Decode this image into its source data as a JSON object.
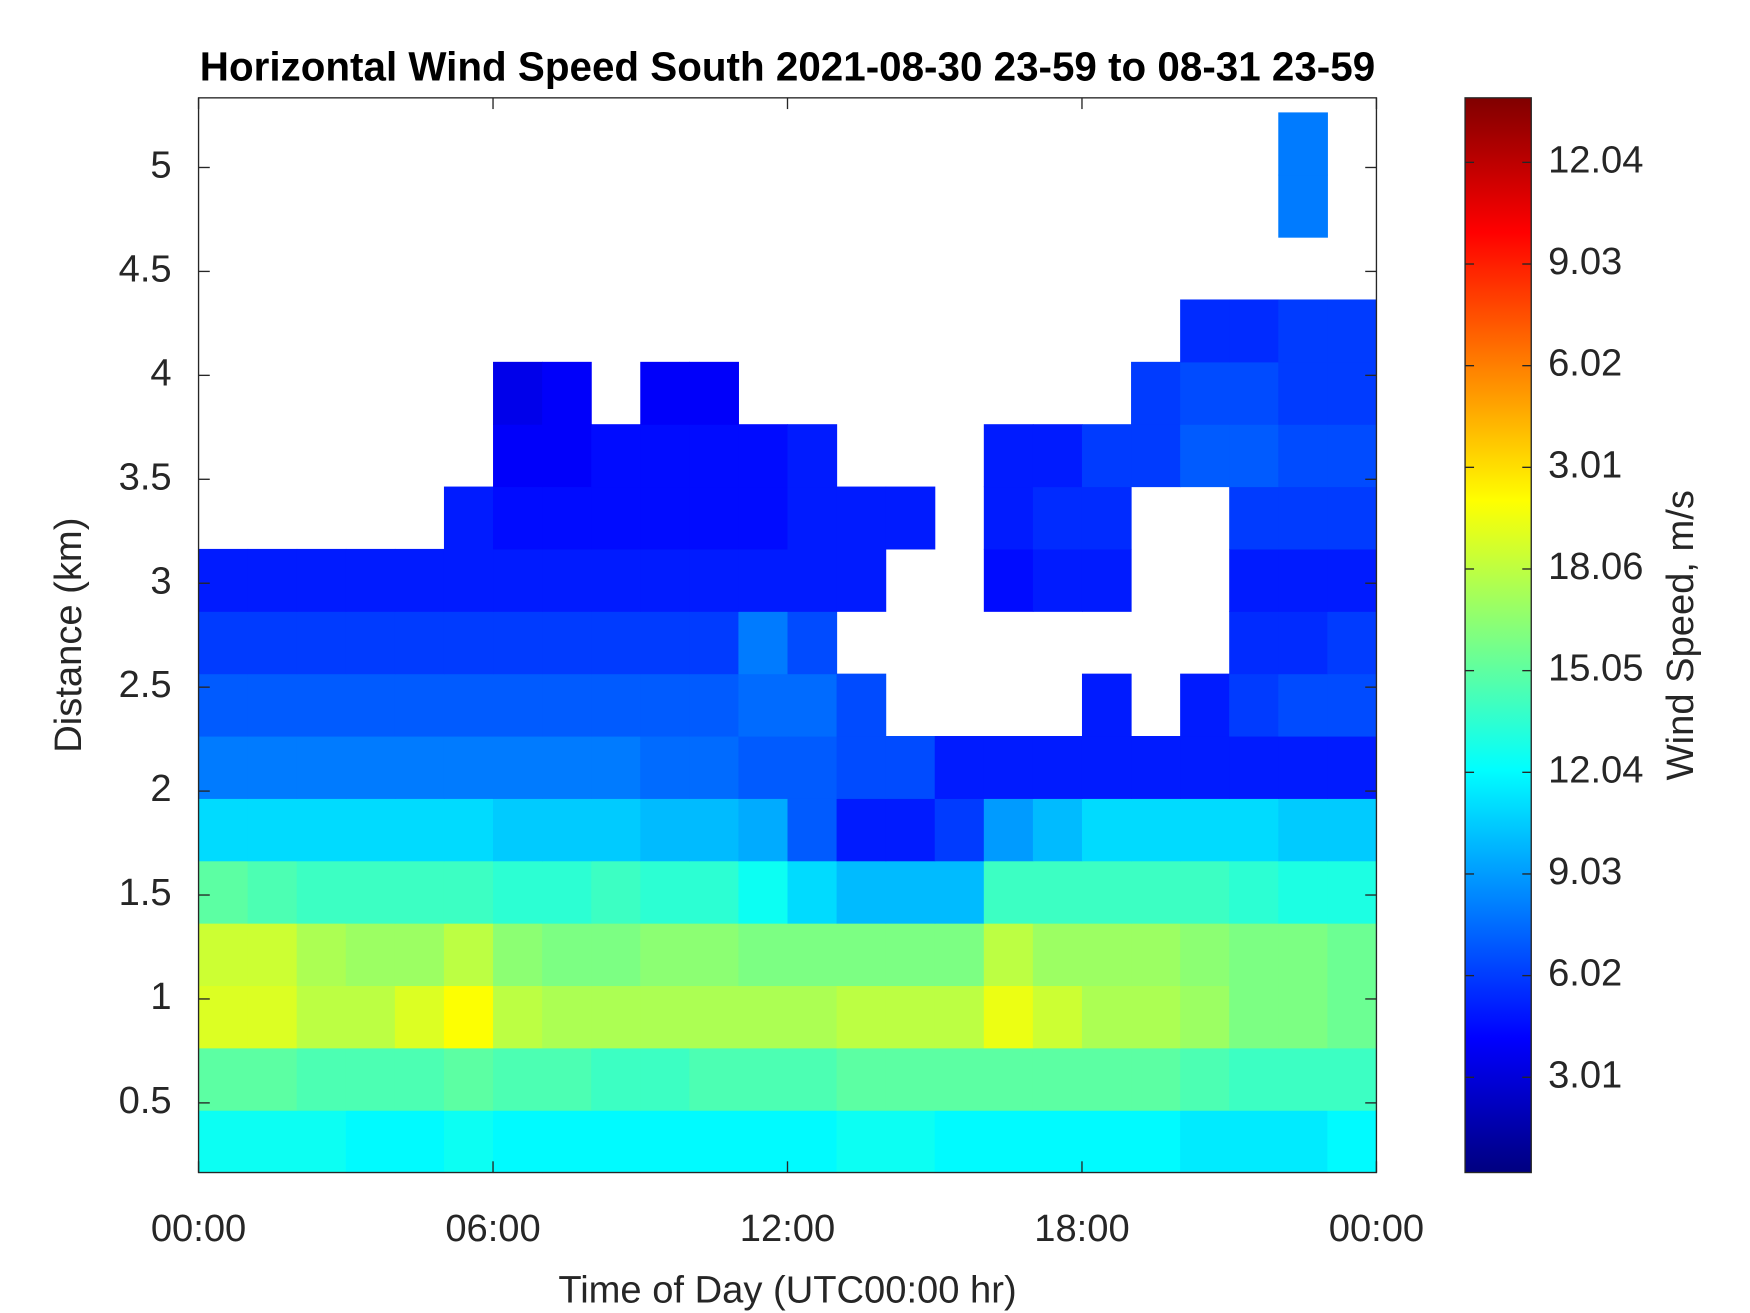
{
  "chart_data": {
    "type": "heatmap",
    "title": "Horizontal Wind Speed South 2021-08-30 23-59 to 08-31 23-59",
    "xlabel": "Time of Day (UTC00:00 hr)",
    "ylabel": "Distance (km)",
    "colorbar_label": "Wind Speed, m/s",
    "colormap": "jet",
    "xlim": [
      0,
      24
    ],
    "xticks": [
      {
        "value": 0,
        "label": "00:00"
      },
      {
        "value": 6,
        "label": "06:00"
      },
      {
        "value": 12,
        "label": "12:00"
      },
      {
        "value": 18,
        "label": "18:00"
      },
      {
        "value": 24,
        "label": "00:00"
      }
    ],
    "ylim": [
      0.165,
      5.335
    ],
    "yticks": [
      0.5,
      1,
      1.5,
      2,
      2.5,
      3,
      3.5,
      4,
      4.5,
      5
    ],
    "clim": [
      0.19,
      32.01
    ],
    "cticks": [
      3.01,
      6.02,
      9.03,
      12.04,
      15.05,
      18.06,
      {
        "value": 21.07,
        "label": "3.01"
      },
      {
        "value": 24.08,
        "label": "6.02"
      },
      {
        "value": 27.09,
        "label": "9.03"
      },
      {
        "value": 30.1,
        "label": "12.04"
      }
    ],
    "xbins": [
      0,
      1,
      2,
      3,
      4,
      5,
      6,
      7,
      8,
      9,
      10,
      11,
      12,
      13,
      14,
      15,
      16,
      17,
      18,
      19,
      20,
      21,
      22,
      23,
      24
    ],
    "ybins": [
      0.165,
      0.465,
      0.765,
      1.065,
      1.365,
      1.665,
      1.965,
      2.265,
      2.565,
      2.865,
      3.165,
      3.465,
      3.765,
      4.065,
      4.365,
      4.665,
      4.965,
      5.265
    ],
    "values": [
      [
        12.5,
        12.5,
        12.5,
        12,
        12,
        12.5,
        12,
        12,
        12,
        12,
        12,
        12,
        12,
        12.5,
        12.5,
        12,
        12,
        12,
        12,
        12,
        11.5,
        11.5,
        11.5,
        12
      ],
      [
        15,
        15,
        14.5,
        14.5,
        14.5,
        15,
        14.5,
        14.5,
        14,
        14,
        14.5,
        14.5,
        14.5,
        15,
        15,
        15,
        15,
        15,
        15,
        15,
        14.5,
        14,
        14,
        14
      ],
      [
        19,
        19,
        18,
        18,
        19,
        20,
        18,
        17.5,
        17.5,
        17.5,
        17.5,
        17.5,
        17.5,
        18,
        18,
        18,
        19.5,
        18.5,
        17.5,
        17.5,
        17,
        16,
        16,
        15.5
      ],
      [
        18.5,
        18.5,
        17.5,
        17,
        17,
        18,
        16.5,
        16,
        16,
        16.5,
        16.5,
        16,
        16,
        16,
        16,
        16,
        18,
        17,
        17,
        17,
        16.5,
        16,
        16,
        15.5
      ],
      [
        15,
        14.5,
        14,
        14,
        14,
        14,
        13.5,
        13.5,
        14,
        13.5,
        13.5,
        12.5,
        11,
        10,
        10,
        10,
        14,
        14,
        14,
        14,
        14,
        13.5,
        13,
        13
      ],
      [
        11,
        11,
        11,
        11,
        11,
        11,
        10.5,
        10.5,
        10.5,
        10,
        10,
        9.5,
        7,
        5,
        5,
        6,
        9,
        10,
        11,
        11,
        11,
        11,
        10.5,
        10.5
      ],
      [
        8,
        8,
        8,
        8,
        8,
        8,
        8,
        8,
        8,
        7.5,
        7.5,
        7,
        7,
        6.5,
        6.5,
        5,
        5,
        5,
        5,
        5,
        5,
        5,
        5,
        5
      ],
      [
        7,
        7,
        7,
        7,
        7,
        7,
        7,
        7,
        7,
        7,
        7,
        7.5,
        7.5,
        6.5,
        null,
        null,
        null,
        null,
        5,
        null,
        5,
        6,
        6.5,
        6.5
      ],
      [
        6,
        6,
        6,
        6,
        6,
        6,
        6,
        6,
        6,
        6,
        6,
        8,
        6.5,
        null,
        null,
        null,
        null,
        null,
        null,
        null,
        null,
        5.5,
        5.5,
        6
      ],
      [
        5,
        5,
        5,
        5,
        5,
        5,
        5,
        5,
        5,
        5,
        5,
        5,
        5,
        5,
        null,
        null,
        4.5,
        5,
        5,
        null,
        null,
        5,
        5,
        5
      ],
      [
        null,
        null,
        null,
        null,
        null,
        5,
        4.5,
        4.5,
        4.5,
        4.5,
        4.5,
        4.5,
        5,
        5,
        5,
        null,
        5,
        5.5,
        5.5,
        null,
        null,
        6,
        6,
        6
      ],
      [
        null,
        null,
        null,
        null,
        null,
        null,
        4,
        4,
        4.5,
        4.5,
        4.5,
        4.5,
        5,
        null,
        null,
        null,
        5,
        5,
        6,
        6,
        7,
        7,
        6.5,
        6.5
      ],
      [
        null,
        null,
        null,
        null,
        null,
        null,
        3.5,
        4,
        null,
        4,
        4,
        null,
        null,
        null,
        null,
        null,
        null,
        null,
        null,
        6,
        6.5,
        6.5,
        6,
        6
      ],
      [
        null,
        null,
        null,
        null,
        null,
        null,
        null,
        null,
        null,
        null,
        null,
        null,
        null,
        null,
        null,
        null,
        null,
        null,
        null,
        null,
        5.5,
        5.5,
        6,
        6
      ],
      [
        null,
        null,
        null,
        null,
        null,
        null,
        null,
        null,
        null,
        null,
        null,
        null,
        null,
        null,
        null,
        null,
        null,
        null,
        null,
        null,
        null,
        null,
        null,
        null
      ],
      [
        null,
        null,
        null,
        null,
        null,
        null,
        null,
        null,
        null,
        null,
        null,
        null,
        null,
        null,
        null,
        null,
        null,
        null,
        null,
        null,
        null,
        null,
        8,
        null
      ],
      [
        null,
        null,
        null,
        null,
        null,
        null,
        null,
        null,
        null,
        null,
        null,
        null,
        null,
        null,
        null,
        null,
        null,
        null,
        null,
        null,
        null,
        null,
        8,
        null
      ]
    ]
  }
}
